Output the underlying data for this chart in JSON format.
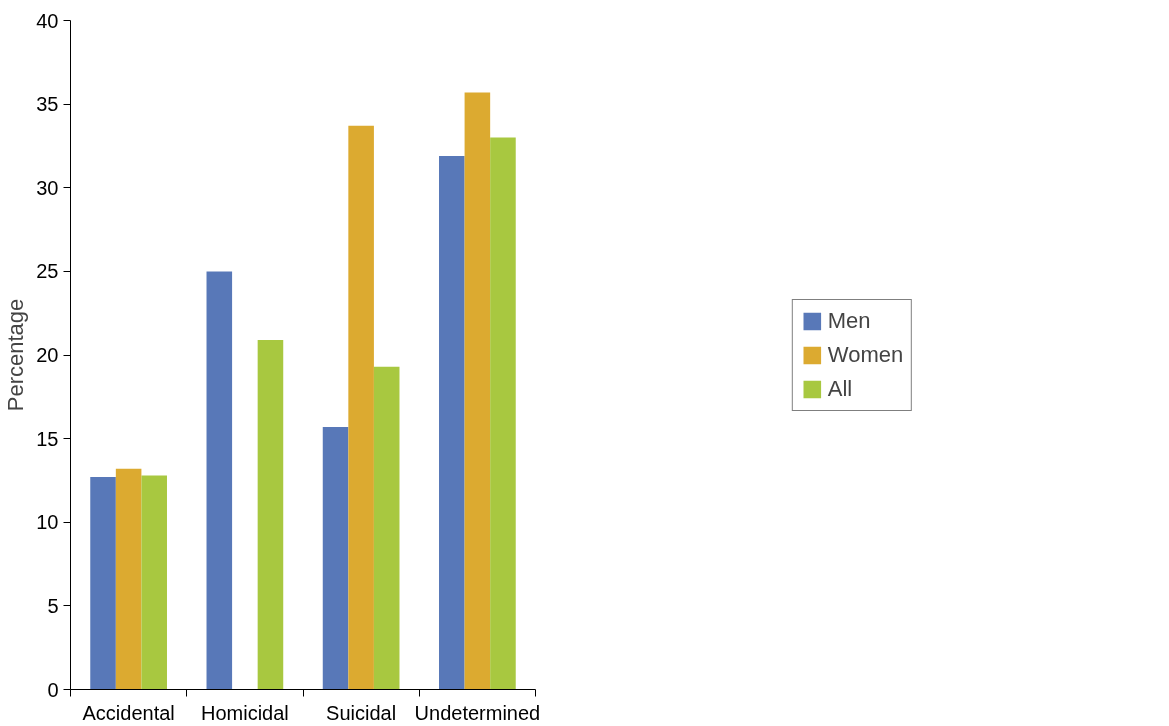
{
  "chart_data": {
    "type": "bar",
    "ylabel": "Percentage",
    "categories": [
      "Accidental",
      "Homicidal",
      "Suicidal",
      "Undetermined"
    ],
    "series": [
      {
        "name": "Men",
        "color": "#5878b8",
        "values": [
          12.7,
          25.0,
          15.7,
          31.9
        ]
      },
      {
        "name": "Women",
        "color": "#dcaa30",
        "values": [
          13.2,
          0,
          33.7,
          35.7
        ]
      },
      {
        "name": "All",
        "color": "#a8c840",
        "values": [
          12.8,
          20.9,
          19.3,
          33.0
        ]
      }
    ],
    "ylim": [
      0,
      40
    ],
    "yticks": [
      0,
      5,
      10,
      15,
      20,
      25,
      30,
      35,
      40
    ],
    "grid": false,
    "legend": "right"
  }
}
